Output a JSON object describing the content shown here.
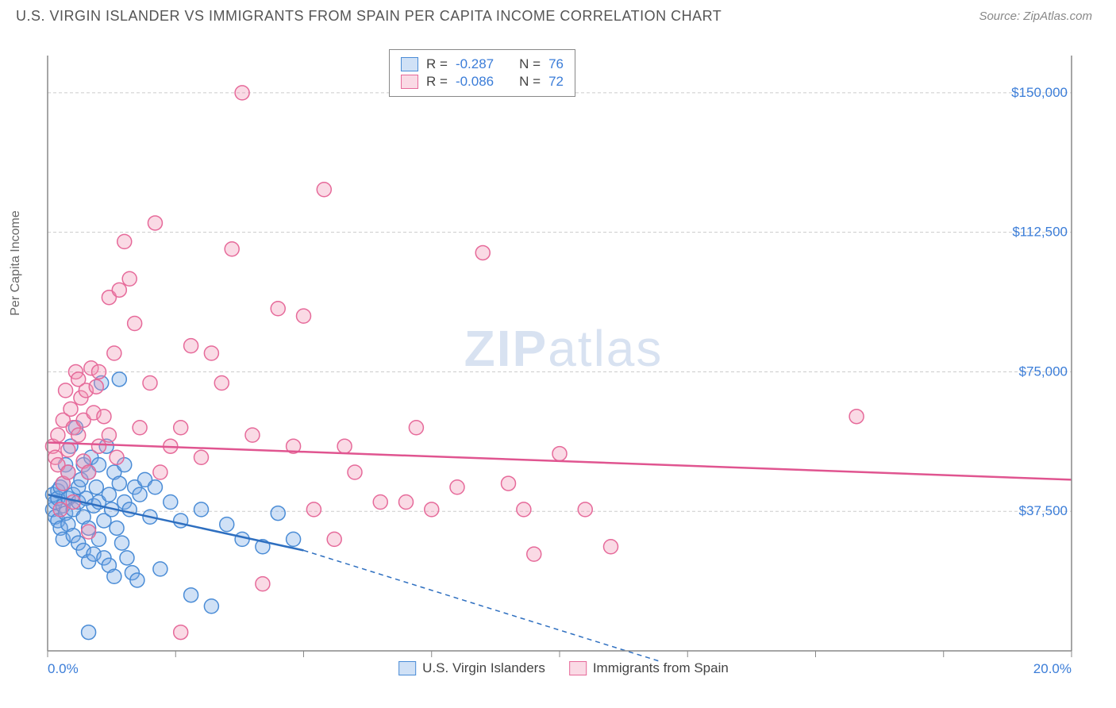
{
  "title": "U.S. VIRGIN ISLANDER VS IMMIGRANTS FROM SPAIN PER CAPITA INCOME CORRELATION CHART",
  "source": "Source: ZipAtlas.com",
  "y_axis_label": "Per Capita Income",
  "watermark_zip": "ZIP",
  "watermark_atlas": "atlas",
  "chart": {
    "type": "scatter",
    "xlim": [
      0,
      20
    ],
    "ylim": [
      0,
      160000
    ],
    "x_ticks": [
      0,
      2.5,
      5,
      7.5,
      10,
      12.5,
      15,
      17.5,
      20
    ],
    "x_tick_labels_shown": {
      "0": "0.0%",
      "20": "20.0%"
    },
    "y_ticks": [
      37500,
      75000,
      112500,
      150000
    ],
    "y_tick_labels": [
      "$37,500",
      "$75,000",
      "$112,500",
      "$150,000"
    ],
    "grid_color": "#cccccc",
    "grid_dash": "4,3",
    "axis_color": "#888888",
    "marker_radius": 9,
    "marker_stroke_width": 1.5,
    "axis_label_color": "#3b7dd8",
    "axis_label_fontsize": 17,
    "trend_line_width": 2.5,
    "dashed_extension_dash": "6,5",
    "series": [
      {
        "name": "U.S. Virgin Islanders",
        "fill": "rgba(120,170,230,0.35)",
        "stroke": "#4a8cd6",
        "line_color": "#2e6fc0",
        "R": "-0.287",
        "N": "76",
        "trend": {
          "x1": 0,
          "y1": 42000,
          "x2": 5,
          "y2": 27000,
          "dash_x2": 12,
          "dash_y2": -3000
        },
        "points": [
          [
            0.1,
            42000
          ],
          [
            0.1,
            38000
          ],
          [
            0.15,
            40000
          ],
          [
            0.15,
            36000
          ],
          [
            0.2,
            43000
          ],
          [
            0.2,
            35000
          ],
          [
            0.2,
            41000
          ],
          [
            0.25,
            44000
          ],
          [
            0.25,
            33000
          ],
          [
            0.3,
            45000
          ],
          [
            0.3,
            39000
          ],
          [
            0.3,
            30000
          ],
          [
            0.35,
            50000
          ],
          [
            0.35,
            37000
          ],
          [
            0.4,
            41000
          ],
          [
            0.4,
            48000
          ],
          [
            0.4,
            34000
          ],
          [
            0.45,
            55000
          ],
          [
            0.5,
            42000
          ],
          [
            0.5,
            38000
          ],
          [
            0.5,
            31000
          ],
          [
            0.55,
            60000
          ],
          [
            0.6,
            40000
          ],
          [
            0.6,
            29000
          ],
          [
            0.6,
            44000
          ],
          [
            0.65,
            46000
          ],
          [
            0.7,
            50000
          ],
          [
            0.7,
            36000
          ],
          [
            0.7,
            27000
          ],
          [
            0.75,
            41000
          ],
          [
            0.8,
            48000
          ],
          [
            0.8,
            33000
          ],
          [
            0.8,
            24000
          ],
          [
            0.85,
            52000
          ],
          [
            0.9,
            39000
          ],
          [
            0.9,
            26000
          ],
          [
            0.95,
            44000
          ],
          [
            1.0,
            50000
          ],
          [
            1.0,
            40000
          ],
          [
            1.0,
            30000
          ],
          [
            1.05,
            72000
          ],
          [
            1.1,
            35000
          ],
          [
            1.1,
            25000
          ],
          [
            1.15,
            55000
          ],
          [
            1.2,
            42000
          ],
          [
            1.2,
            23000
          ],
          [
            1.25,
            38000
          ],
          [
            1.3,
            48000
          ],
          [
            1.3,
            20000
          ],
          [
            1.35,
            33000
          ],
          [
            1.4,
            45000
          ],
          [
            1.4,
            73000
          ],
          [
            1.45,
            29000
          ],
          [
            1.5,
            50000
          ],
          [
            1.5,
            40000
          ],
          [
            1.55,
            25000
          ],
          [
            1.6,
            38000
          ],
          [
            1.65,
            21000
          ],
          [
            1.7,
            44000
          ],
          [
            1.75,
            19000
          ],
          [
            1.8,
            42000
          ],
          [
            1.9,
            46000
          ],
          [
            2.0,
            36000
          ],
          [
            2.1,
            44000
          ],
          [
            2.2,
            22000
          ],
          [
            2.4,
            40000
          ],
          [
            2.6,
            35000
          ],
          [
            2.8,
            15000
          ],
          [
            3.0,
            38000
          ],
          [
            3.2,
            12000
          ],
          [
            3.5,
            34000
          ],
          [
            3.8,
            30000
          ],
          [
            4.2,
            28000
          ],
          [
            4.5,
            37000
          ],
          [
            4.8,
            30000
          ],
          [
            0.8,
            5000
          ]
        ]
      },
      {
        "name": "Immigrants from Spain",
        "fill": "rgba(240,150,180,0.35)",
        "stroke": "#e66a9a",
        "line_color": "#e05590",
        "R": "-0.086",
        "N": "72",
        "trend": {
          "x1": 0,
          "y1": 56000,
          "x2": 20,
          "y2": 46000
        },
        "points": [
          [
            0.1,
            55000
          ],
          [
            0.15,
            52000
          ],
          [
            0.2,
            50000
          ],
          [
            0.2,
            58000
          ],
          [
            0.25,
            38000
          ],
          [
            0.3,
            62000
          ],
          [
            0.3,
            45000
          ],
          [
            0.35,
            70000
          ],
          [
            0.4,
            48000
          ],
          [
            0.4,
            54000
          ],
          [
            0.45,
            65000
          ],
          [
            0.5,
            40000
          ],
          [
            0.5,
            60000
          ],
          [
            0.55,
            75000
          ],
          [
            0.6,
            58000
          ],
          [
            0.6,
            73000
          ],
          [
            0.65,
            68000
          ],
          [
            0.7,
            51000
          ],
          [
            0.7,
            62000
          ],
          [
            0.75,
            70000
          ],
          [
            0.8,
            48000
          ],
          [
            0.8,
            32000
          ],
          [
            0.85,
            76000
          ],
          [
            0.9,
            64000
          ],
          [
            0.95,
            71000
          ],
          [
            1.0,
            75000
          ],
          [
            1.0,
            55000
          ],
          [
            1.1,
            63000
          ],
          [
            1.2,
            95000
          ],
          [
            1.2,
            58000
          ],
          [
            1.3,
            80000
          ],
          [
            1.35,
            52000
          ],
          [
            1.4,
            97000
          ],
          [
            1.5,
            110000
          ],
          [
            1.6,
            100000
          ],
          [
            1.7,
            88000
          ],
          [
            1.8,
            60000
          ],
          [
            2.0,
            72000
          ],
          [
            2.1,
            115000
          ],
          [
            2.2,
            48000
          ],
          [
            2.4,
            55000
          ],
          [
            2.6,
            60000
          ],
          [
            2.8,
            82000
          ],
          [
            3.0,
            52000
          ],
          [
            3.2,
            80000
          ],
          [
            3.4,
            72000
          ],
          [
            3.6,
            108000
          ],
          [
            3.8,
            150000
          ],
          [
            4.0,
            58000
          ],
          [
            4.2,
            18000
          ],
          [
            4.5,
            92000
          ],
          [
            4.8,
            55000
          ],
          [
            5.0,
            90000
          ],
          [
            5.2,
            38000
          ],
          [
            5.4,
            124000
          ],
          [
            5.6,
            30000
          ],
          [
            5.8,
            55000
          ],
          [
            6.0,
            48000
          ],
          [
            6.5,
            40000
          ],
          [
            7.0,
            40000
          ],
          [
            7.2,
            60000
          ],
          [
            7.5,
            38000
          ],
          [
            8.0,
            44000
          ],
          [
            8.5,
            107000
          ],
          [
            9.0,
            45000
          ],
          [
            9.3,
            38000
          ],
          [
            9.5,
            26000
          ],
          [
            10.0,
            53000
          ],
          [
            10.5,
            38000
          ],
          [
            11.0,
            28000
          ],
          [
            15.8,
            63000
          ],
          [
            2.6,
            5000
          ]
        ]
      }
    ]
  },
  "legend": {
    "series1": "U.S. Virgin Islanders",
    "series2": "Immigrants from Spain"
  },
  "stats_labels": {
    "R": "R =",
    "N": "N ="
  }
}
